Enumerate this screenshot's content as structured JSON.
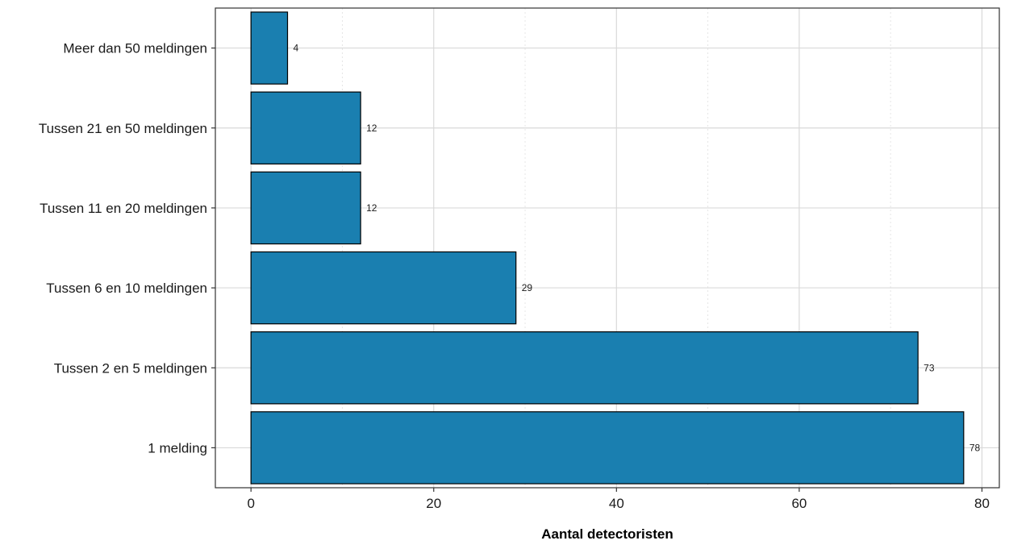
{
  "chart_data": {
    "type": "bar",
    "orientation": "horizontal",
    "categories": [
      "1 melding",
      "Tussen 2 en 5 meldingen",
      "Tussen 6 en 10 meldingen",
      "Tussen 11 en 20 meldingen",
      "Tussen 21 en 50 meldingen",
      "Meer dan 50 meldingen"
    ],
    "values": [
      78,
      73,
      29,
      12,
      12,
      4
    ],
    "data_labels": [
      "78",
      "73",
      "29",
      "12",
      "12",
      "4"
    ],
    "title": "",
    "xlabel": "Aantal detectoristen",
    "ylabel": "",
    "xlim": [
      -3.9,
      81.9
    ],
    "xticks": [
      0,
      20,
      40,
      60,
      80
    ],
    "xtick_labels": [
      "0",
      "20",
      "40",
      "60",
      "80"
    ],
    "grid": true,
    "legend": "none",
    "colors": {
      "bar_fill": "#1a7fb0",
      "bar_stroke": "#000000",
      "grid_major": "#d9d9d9",
      "grid_minor": "#e6e6e6",
      "panel_border": "#333333"
    }
  }
}
